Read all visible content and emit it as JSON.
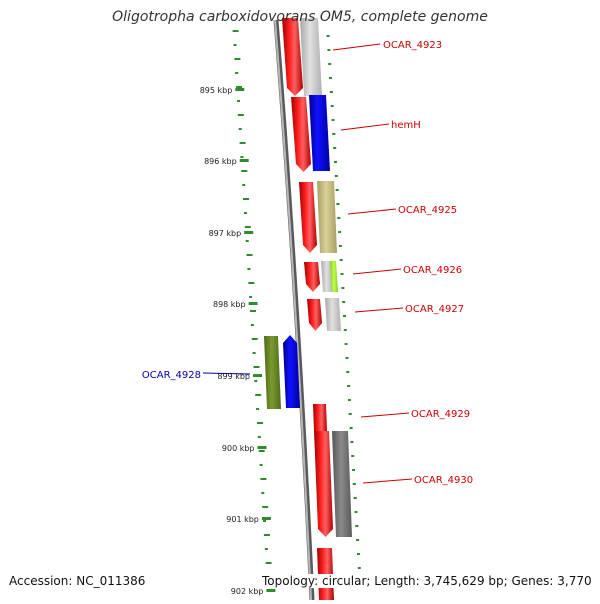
{
  "title": "Oligotropha carboxidovorans OM5, complete genome",
  "footer": {
    "accession": "Accession: NC_011386",
    "summary": "Topology: circular; Length: 3,745,629 bp; Genes: 3,770"
  },
  "ticks": [
    "895 kbp",
    "896 kbp",
    "897 kbp",
    "898 kbp",
    "899 kbp",
    "900 kbp",
    "901 kbp",
    "902 kbp"
  ],
  "gene_labels": [
    {
      "text": "OCAR_4923",
      "color": "#cc0000"
    },
    {
      "text": "hemH",
      "color": "#cc0000"
    },
    {
      "text": "OCAR_4925",
      "color": "#cc0000"
    },
    {
      "text": "OCAR_4926",
      "color": "#cc0000"
    },
    {
      "text": "OCAR_4927",
      "color": "#cc0000"
    },
    {
      "text": "OCAR_4928",
      "color": "#0000aa"
    },
    {
      "text": "OCAR_4929",
      "color": "#cc0000"
    },
    {
      "text": "OCAR_4930",
      "color": "#cc0000"
    }
  ],
  "colors": {
    "backbone": "#808080",
    "dots": "#2e8b2e",
    "red": "#ff0000",
    "blue": "#0000ff",
    "gray": "#c0c0c0",
    "darkgray": "#707070",
    "olive": "#c8c080",
    "lime": "#a0ff20",
    "darkolive": "#6b8e23"
  }
}
